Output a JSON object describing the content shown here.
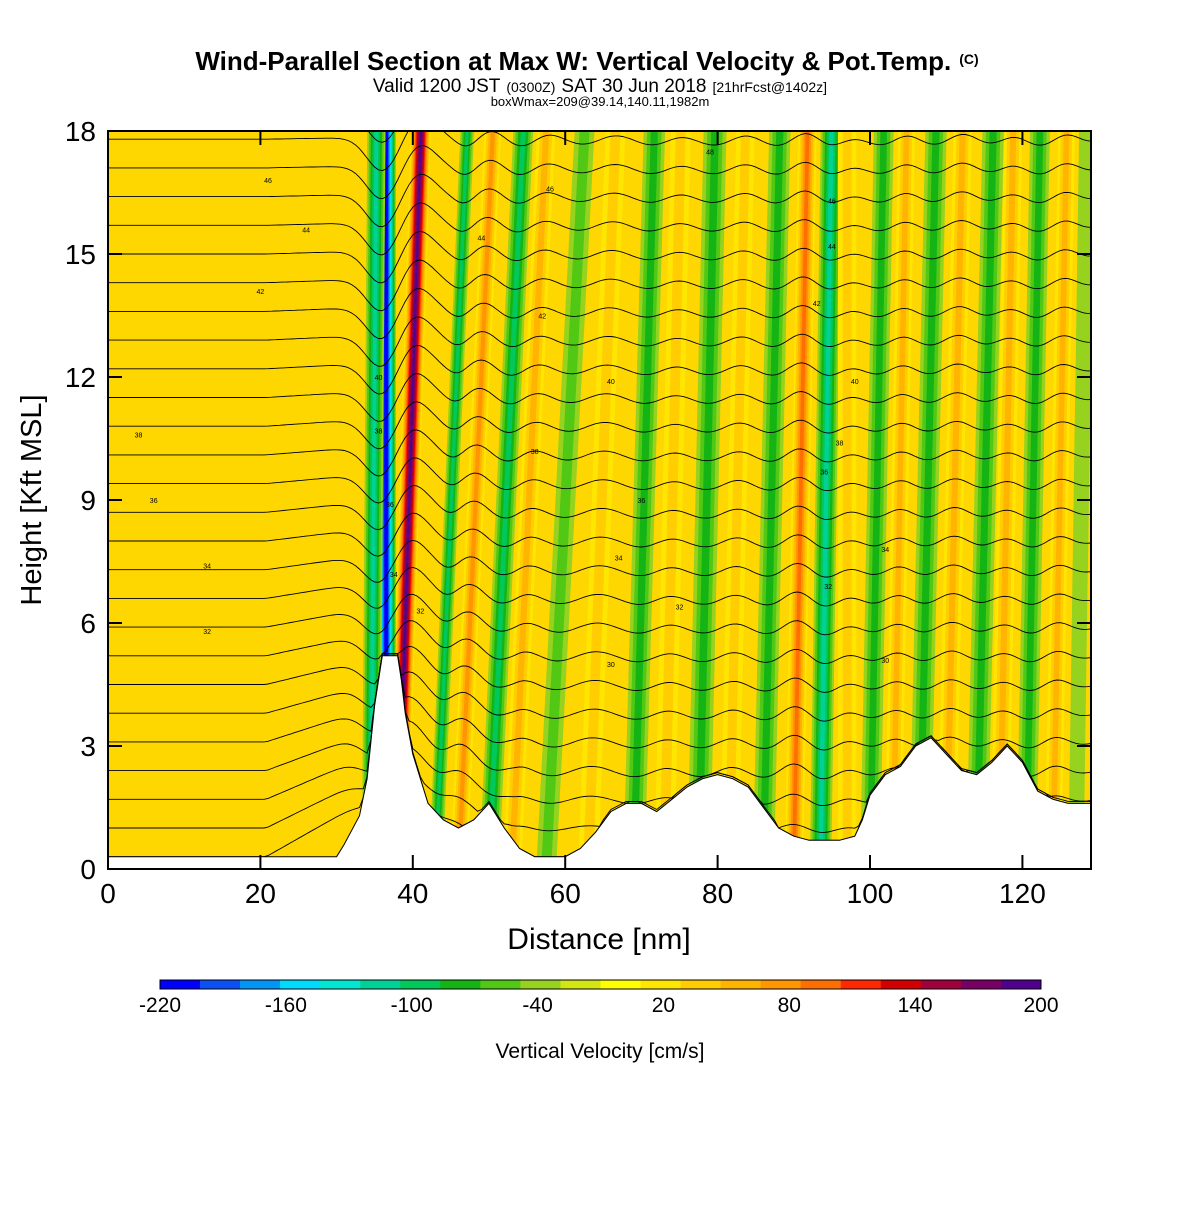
{
  "chart_data": {
    "type": "heatmap",
    "title": "Wind-Parallel Section at Max W: Vertical Velocity & Pot.Temp.",
    "title_units": "(C)",
    "subtitle": {
      "valid_prefix": "Valid 1200 JST",
      "utc": "(0300Z)",
      "date": "SAT 30 Jun 2018",
      "forecast": "[21hrFcst@1402z]"
    },
    "box_info": "boxWmax=209@39.14,140.11,1982m",
    "xlabel": "Distance [nm]",
    "ylabel": "Height [Kft MSL]",
    "xlim": [
      0,
      129
    ],
    "ylim": [
      0,
      18
    ],
    "x_ticks": [
      0,
      20,
      40,
      60,
      80,
      100,
      120
    ],
    "y_ticks": [
      0,
      3,
      6,
      9,
      12,
      15,
      18
    ],
    "terrain_profile": {
      "distance_nm": [
        0,
        30,
        31,
        33,
        34,
        35,
        36,
        38,
        38.5,
        39,
        40,
        41,
        42,
        44,
        46,
        48,
        50,
        52,
        54,
        56,
        58,
        60,
        62,
        64,
        66,
        68,
        70,
        72,
        74,
        76,
        78,
        80,
        82,
        84,
        86,
        88,
        90,
        92,
        94,
        96,
        98,
        99,
        100,
        102,
        104,
        106,
        108,
        110,
        112,
        114,
        116,
        118,
        120,
        122,
        124,
        126,
        129
      ],
      "height_kft": [
        0.3,
        0.3,
        0.6,
        1.3,
        2.2,
        4.0,
        5.2,
        5.2,
        4.6,
        3.8,
        2.8,
        2.2,
        1.6,
        1.2,
        1.0,
        1.2,
        1.6,
        1.0,
        0.5,
        0.3,
        0.3,
        0.3,
        0.5,
        0.9,
        1.4,
        1.6,
        1.6,
        1.4,
        1.7,
        2.0,
        2.2,
        2.3,
        2.2,
        2.0,
        1.5,
        1.0,
        0.8,
        0.7,
        0.7,
        0.7,
        0.8,
        1.2,
        1.8,
        2.3,
        2.5,
        3.0,
        3.2,
        2.8,
        2.4,
        2.3,
        2.6,
        3.0,
        2.6,
        1.9,
        1.7,
        1.6,
        1.6
      ]
    },
    "vertical_velocity_bands": [
      {
        "x_base_nm": 38,
        "tilt_nm_per_kft": 0.17,
        "width_nm": 1.3,
        "value_cm_s": 200
      },
      {
        "x_base_nm": 36.5,
        "tilt_nm_per_kft": 0.0,
        "width_nm": 1.3,
        "value_cm_s": -220
      },
      {
        "x_base_nm": 34.5,
        "tilt_nm_per_kft": 0.04,
        "width_nm": 1.2,
        "value_cm_s": -100
      },
      {
        "x_base_nm": 43,
        "tilt_nm_per_kft": 0.23,
        "width_nm": 0.9,
        "value_cm_s": -80
      },
      {
        "x_base_nm": 46,
        "tilt_nm_per_kft": 0.25,
        "width_nm": 1.1,
        "value_cm_s": 80
      },
      {
        "x_base_nm": 50,
        "tilt_nm_per_kft": 0.25,
        "width_nm": 1.3,
        "value_cm_s": -80
      },
      {
        "x_base_nm": 53,
        "tilt_nm_per_kft": 0.25,
        "width_nm": 1.2,
        "value_cm_s": 60
      },
      {
        "x_base_nm": 57.5,
        "tilt_nm_per_kft": 0.28,
        "width_nm": 1.3,
        "value_cm_s": -50
      },
      {
        "x_base_nm": 63,
        "tilt_nm_per_kft": 0.2,
        "width_nm": 1.3,
        "value_cm_s": 40
      },
      {
        "x_base_nm": 69,
        "tilt_nm_per_kft": 0.15,
        "width_nm": 1.4,
        "value_cm_s": -60
      },
      {
        "x_base_nm": 73,
        "tilt_nm_per_kft": 0.12,
        "width_nm": 1.3,
        "value_cm_s": 40
      },
      {
        "x_base_nm": 77.5,
        "tilt_nm_per_kft": 0.12,
        "width_nm": 1.5,
        "value_cm_s": -60
      },
      {
        "x_base_nm": 81.5,
        "tilt_nm_per_kft": 0.12,
        "width_nm": 1.2,
        "value_cm_s": 50
      },
      {
        "x_base_nm": 86,
        "tilt_nm_per_kft": 0.12,
        "width_nm": 1.4,
        "value_cm_s": -70
      },
      {
        "x_base_nm": 90,
        "tilt_nm_per_kft": 0.1,
        "width_nm": 1.2,
        "value_cm_s": 100
      },
      {
        "x_base_nm": 93.5,
        "tilt_nm_per_kft": 0.08,
        "width_nm": 1.4,
        "value_cm_s": -100
      },
      {
        "x_base_nm": 97,
        "tilt_nm_per_kft": 0.0,
        "width_nm": 1.2,
        "value_cm_s": 50
      },
      {
        "x_base_nm": 100,
        "tilt_nm_per_kft": 0.1,
        "width_nm": 1.3,
        "value_cm_s": -60
      },
      {
        "x_base_nm": 103,
        "tilt_nm_per_kft": 0.1,
        "width_nm": 1.1,
        "value_cm_s": 60
      },
      {
        "x_base_nm": 106.5,
        "tilt_nm_per_kft": 0.12,
        "width_nm": 1.4,
        "value_cm_s": -60
      },
      {
        "x_base_nm": 110,
        "tilt_nm_per_kft": 0.12,
        "width_nm": 1.2,
        "value_cm_s": 70
      },
      {
        "x_base_nm": 114,
        "tilt_nm_per_kft": 0.12,
        "width_nm": 1.4,
        "value_cm_s": -60
      },
      {
        "x_base_nm": 117,
        "tilt_nm_per_kft": 0.1,
        "width_nm": 1.2,
        "value_cm_s": 60
      },
      {
        "x_base_nm": 120.5,
        "tilt_nm_per_kft": 0.1,
        "width_nm": 1.3,
        "value_cm_s": -70
      },
      {
        "x_base_nm": 124,
        "tilt_nm_per_kft": 0.1,
        "width_nm": 1.1,
        "value_cm_s": 60
      },
      {
        "x_base_nm": 127,
        "tilt_nm_per_kft": 0.08,
        "width_nm": 1.0,
        "value_cm_s": -30
      }
    ],
    "potential_temperature_labels": [
      {
        "x": 21,
        "y": 16.8,
        "label": "46"
      },
      {
        "x": 26,
        "y": 15.6,
        "label": "44"
      },
      {
        "x": 20,
        "y": 14.1,
        "label": "42"
      },
      {
        "x": 4,
        "y": 10.6,
        "label": "38"
      },
      {
        "x": 6,
        "y": 9.0,
        "label": "36"
      },
      {
        "x": 13,
        "y": 7.4,
        "label": "34"
      },
      {
        "x": 13,
        "y": 5.8,
        "label": "32"
      },
      {
        "x": 35.5,
        "y": 12.0,
        "label": "40"
      },
      {
        "x": 35.5,
        "y": 10.7,
        "label": "38"
      },
      {
        "x": 37,
        "y": 8.9,
        "label": "36"
      },
      {
        "x": 37.5,
        "y": 7.2,
        "label": "34"
      },
      {
        "x": 41,
        "y": 6.3,
        "label": "32"
      },
      {
        "x": 49,
        "y": 15.4,
        "label": "44"
      },
      {
        "x": 58,
        "y": 16.6,
        "label": "46"
      },
      {
        "x": 57,
        "y": 13.5,
        "label": "42"
      },
      {
        "x": 56,
        "y": 10.2,
        "label": "38"
      },
      {
        "x": 66,
        "y": 11.9,
        "label": "40"
      },
      {
        "x": 70,
        "y": 9.0,
        "label": "36"
      },
      {
        "x": 67,
        "y": 7.6,
        "label": "34"
      },
      {
        "x": 75,
        "y": 6.4,
        "label": "32"
      },
      {
        "x": 66,
        "y": 5.0,
        "label": "30"
      },
      {
        "x": 79,
        "y": 17.5,
        "label": "48"
      },
      {
        "x": 95,
        "y": 16.3,
        "label": "46"
      },
      {
        "x": 95,
        "y": 15.2,
        "label": "44"
      },
      {
        "x": 93,
        "y": 13.8,
        "label": "42"
      },
      {
        "x": 98,
        "y": 11.9,
        "label": "40"
      },
      {
        "x": 96,
        "y": 10.4,
        "label": "38"
      },
      {
        "x": 94,
        "y": 9.7,
        "label": "36"
      },
      {
        "x": 102,
        "y": 7.8,
        "label": "34"
      },
      {
        "x": 94.5,
        "y": 6.9,
        "label": "32"
      },
      {
        "x": 102,
        "y": 5.1,
        "label": "30"
      }
    ],
    "colorbar": {
      "label": "Vertical Velocity [cm/s]",
      "min": -220,
      "max": 200,
      "step": 20,
      "tick_labels": [
        "-220",
        "-160",
        "-100",
        "-40",
        "20",
        "80",
        "140",
        "200"
      ],
      "colors": [
        "#0000ff",
        "#0a50f5",
        "#0096f5",
        "#00dcff",
        "#00e6d2",
        "#00d296",
        "#00c85a",
        "#14b414",
        "#50c814",
        "#96d21e",
        "#d2e614",
        "#ffff00",
        "#ffe600",
        "#ffcd00",
        "#ffb400",
        "#ff9600",
        "#ff6e00",
        "#ff2800",
        "#d20000",
        "#a0003c",
        "#780064",
        "#50008c"
      ]
    }
  }
}
